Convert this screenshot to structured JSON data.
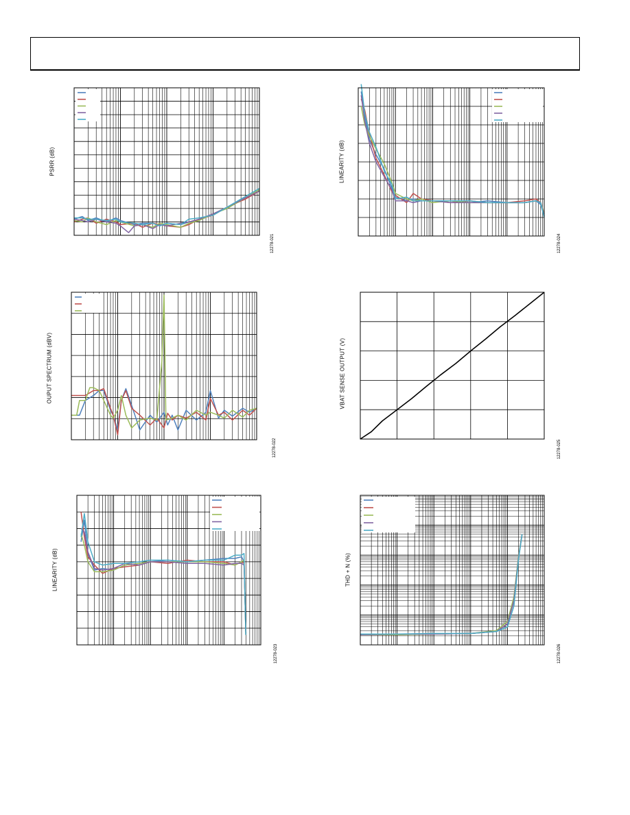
{
  "colors": {
    "blue": "#4f81bd",
    "red": "#c0504d",
    "green": "#9bbb59",
    "purple": "#8064a2",
    "cyan": "#4bacc6",
    "black": "#000000"
  },
  "chart_data": [
    {
      "id": "psrr",
      "type": "line",
      "xscale": "log",
      "ylabel": "PSRR (dB)",
      "figure_id": "12278-021",
      "xlim": [
        10,
        100000
      ],
      "ylim": [
        0,
        11
      ],
      "series": [
        {
          "color": "blue",
          "x": [
            10,
            15,
            20,
            30,
            50,
            80,
            100,
            200,
            300,
            500,
            700,
            1000,
            2000,
            3000,
            5000,
            10000,
            20000,
            50000,
            100000
          ],
          "y": [
            1.2,
            1.4,
            1.1,
            1.3,
            1.0,
            1.3,
            1.1,
            0.8,
            0.9,
            0.9,
            0.7,
            0.9,
            0.8,
            1.0,
            1.1,
            1.6,
            2.0,
            2.8,
            3.4
          ]
        },
        {
          "color": "red",
          "x": [
            10,
            15,
            20,
            30,
            50,
            80,
            100,
            200,
            300,
            500,
            700,
            1000,
            2000,
            3000,
            5000,
            10000,
            20000,
            50000,
            100000
          ],
          "y": [
            1.0,
            1.2,
            1.3,
            0.9,
            1.2,
            1.0,
            0.8,
            0.9,
            0.6,
            0.9,
            0.8,
            0.7,
            0.6,
            0.8,
            1.2,
            1.5,
            2.1,
            2.7,
            3.3
          ]
        },
        {
          "color": "green",
          "x": [
            10,
            15,
            20,
            30,
            50,
            80,
            100,
            200,
            300,
            500,
            700,
            1000,
            2000,
            3000,
            5000,
            10000,
            20000,
            50000,
            100000
          ],
          "y": [
            1.1,
            1.0,
            1.3,
            1.0,
            0.8,
            1.1,
            1.0,
            0.7,
            0.8,
            0.6,
            0.9,
            0.8,
            0.6,
            0.9,
            1.1,
            1.6,
            2.0,
            2.8,
            3.4
          ]
        },
        {
          "color": "purple",
          "x": [
            10,
            15,
            20,
            30,
            50,
            80,
            100,
            150,
            200,
            300,
            500,
            700,
            1000,
            2000,
            3000,
            5000,
            10000,
            20000,
            50000,
            100000
          ],
          "y": [
            1.2,
            1.1,
            1.0,
            1.2,
            1.0,
            0.9,
            0.7,
            0.2,
            0.7,
            0.8,
            0.5,
            0.8,
            0.7,
            0.9,
            1.0,
            1.2,
            1.6,
            2.1,
            2.8,
            3.3
          ]
        },
        {
          "color": "cyan",
          "x": [
            10,
            15,
            20,
            30,
            50,
            80,
            100,
            200,
            300,
            500,
            700,
            1000,
            2000,
            3000,
            5000,
            10000,
            20000,
            50000,
            100000
          ],
          "y": [
            1.3,
            1.3,
            1.2,
            1.2,
            1.1,
            1.2,
            1.0,
            0.9,
            0.8,
            0.9,
            0.7,
            0.9,
            0.8,
            1.2,
            1.3,
            1.5,
            2.1,
            2.9,
            3.5
          ]
        }
      ],
      "legend_rows": 5
    },
    {
      "id": "lin-right",
      "type": "line",
      "xscale": "log",
      "ylabel": "LINEARITY (dB)",
      "figure_id": "12278-024",
      "xlim": [
        0.0001,
        10
      ],
      "ylim": [
        0,
        8
      ],
      "series": [
        {
          "color": "blue",
          "x": [
            0.00012,
            0.00015,
            0.0002,
            0.0003,
            0.0005,
            0.0008,
            0.001,
            0.002,
            0.003,
            0.005,
            0.01,
            0.03,
            0.1,
            0.3,
            1,
            3,
            6,
            8,
            10
          ],
          "y": [
            7.8,
            6.5,
            5.2,
            4.4,
            3.6,
            2.6,
            2.1,
            1.9,
            2.0,
            1.9,
            1.9,
            1.9,
            1.8,
            1.9,
            1.8,
            1.8,
            1.9,
            1.7,
            1.1
          ]
        },
        {
          "color": "red",
          "x": [
            0.00012,
            0.00015,
            0.0002,
            0.0003,
            0.0005,
            0.0008,
            0.001,
            0.002,
            0.003,
            0.005,
            0.01,
            0.03,
            0.1,
            0.3,
            1,
            3,
            6,
            8,
            10
          ],
          "y": [
            7.4,
            6.8,
            5.5,
            4.2,
            3.3,
            2.4,
            2.2,
            1.8,
            2.3,
            2.0,
            1.9,
            1.8,
            1.9,
            1.8,
            1.8,
            1.9,
            2.0,
            1.8,
            1.2
          ]
        },
        {
          "color": "green",
          "x": [
            0.00012,
            0.00015,
            0.0002,
            0.0003,
            0.0005,
            0.0008,
            0.001,
            0.002,
            0.003,
            0.005,
            0.01,
            0.03,
            0.1,
            0.3,
            1,
            3,
            6,
            8,
            10
          ],
          "y": [
            7.0,
            6.0,
            5.4,
            4.7,
            3.9,
            2.9,
            2.3,
            2.0,
            1.9,
            2.0,
            1.8,
            1.9,
            1.8,
            1.8,
            1.8,
            1.8,
            1.9,
            1.8,
            1.2
          ]
        },
        {
          "color": "purple",
          "x": [
            0.00012,
            0.00015,
            0.0002,
            0.0003,
            0.0005,
            0.0008,
            0.001,
            0.002,
            0.003,
            0.005,
            0.01,
            0.03,
            0.1,
            0.3,
            1,
            3,
            6,
            8,
            10
          ],
          "y": [
            7.6,
            6.2,
            5.0,
            4.0,
            3.2,
            2.5,
            1.9,
            1.9,
            1.8,
            1.9,
            1.9,
            1.8,
            1.8,
            1.8,
            1.8,
            1.8,
            1.9,
            1.8,
            1.1
          ]
        },
        {
          "color": "cyan",
          "x": [
            0.00012,
            0.00015,
            0.0002,
            0.0003,
            0.0005,
            0.0008,
            0.001,
            0.002,
            0.003,
            0.005,
            0.01,
            0.03,
            0.1,
            0.3,
            1,
            3,
            6,
            8,
            10
          ],
          "y": [
            8.2,
            6.6,
            5.6,
            4.8,
            3.5,
            2.8,
            2.0,
            2.1,
            1.9,
            1.9,
            1.9,
            1.9,
            1.9,
            1.8,
            1.8,
            1.8,
            1.9,
            1.8,
            1.0
          ]
        }
      ],
      "legend_rows": 5
    },
    {
      "id": "spectrum",
      "type": "line",
      "xscale": "log",
      "ylabel": "OUPUT SPECTRUM (dBV)",
      "figure_id": "12278-022",
      "xlim": [
        10,
        100000
      ],
      "ylim": [
        -150,
        0
      ],
      "series": [
        {
          "color": "blue",
          "x": [
            10,
            15,
            20,
            30,
            40,
            50,
            70,
            80,
            100,
            120,
            150,
            200,
            300,
            500,
            700,
            1000,
            1200,
            1500,
            2000,
            3000,
            5000,
            8000,
            10000,
            15000,
            20000,
            30000,
            50000,
            70000,
            100000
          ],
          "y": [
            -125,
            -125,
            -110,
            -105,
            -100,
            -100,
            -120,
            -125,
            -140,
            -110,
            -98,
            -115,
            -140,
            -125,
            -132,
            -122,
            -135,
            -125,
            -140,
            -120,
            -130,
            -122,
            -100,
            -128,
            -120,
            -126,
            -118,
            -122,
            -118
          ]
        },
        {
          "color": "red",
          "x": [
            10,
            15,
            20,
            30,
            40,
            50,
            70,
            80,
            100,
            120,
            150,
            200,
            300,
            500,
            700,
            1000,
            1200,
            1500,
            2000,
            3000,
            5000,
            8000,
            10000,
            15000,
            20000,
            30000,
            50000,
            70000,
            100000
          ],
          "y": [
            -105,
            -105,
            -105,
            -100,
            -100,
            -98,
            -118,
            -125,
            -145,
            -110,
            -100,
            -118,
            -125,
            -135,
            -128,
            -138,
            -123,
            -130,
            -125,
            -128,
            -122,
            -130,
            -108,
            -125,
            -122,
            -130,
            -120,
            -125,
            -118
          ]
        },
        {
          "color": "green",
          "x": [
            10,
            13,
            15,
            20,
            25,
            30,
            40,
            50,
            70,
            80,
            100,
            120,
            150,
            200,
            300,
            500,
            700,
            900,
            1000,
            1100,
            1500,
            2000,
            3000,
            5000,
            8000,
            10000,
            15000,
            20000,
            30000,
            50000,
            70000,
            100000
          ],
          "y": [
            -125,
            -125,
            -110,
            -110,
            -97,
            -97,
            -100,
            -110,
            -125,
            -128,
            -120,
            -105,
            -125,
            -138,
            -130,
            -128,
            -130,
            -70,
            -3,
            -130,
            -128,
            -125,
            -130,
            -120,
            -125,
            -122,
            -125,
            -128,
            -120,
            -127,
            -120,
            -118
          ]
        }
      ],
      "legend_rows": 3
    },
    {
      "id": "vbat",
      "type": "line",
      "xscale": "linear",
      "ylabel": "VBAT SENSE OUTPUT (V)",
      "figure_id": "12278-025",
      "xlim": [
        0,
        5
      ],
      "ylim": [
        0,
        5
      ],
      "series": [
        {
          "color": "black",
          "x": [
            0,
            0.3,
            0.6,
            1.0,
            1.4,
            1.8,
            2.2,
            2.6,
            3.0,
            3.4,
            3.8,
            4.2,
            4.6,
            5.0
          ],
          "y": [
            0,
            0.25,
            0.62,
            1.0,
            1.38,
            1.8,
            2.2,
            2.58,
            3.0,
            3.4,
            3.82,
            4.2,
            4.6,
            5.0
          ]
        }
      ],
      "legend_rows": 0
    },
    {
      "id": "lin-left",
      "type": "line",
      "xscale": "log",
      "ylabel": "LINEARITY (dB)",
      "figure_id": "12278-023",
      "xlim": [
        0.0001,
        10
      ],
      "ylim": [
        0,
        9
      ],
      "series": [
        {
          "color": "blue",
          "x": [
            0.00013,
            0.00016,
            0.0002,
            0.0003,
            0.0005,
            0.001,
            0.002,
            0.005,
            0.01,
            0.03,
            0.1,
            0.3,
            1,
            2,
            3,
            3.5,
            3.7,
            3.9
          ],
          "y": [
            6.2,
            7.5,
            5.5,
            4.5,
            4.6,
            4.5,
            4.8,
            4.9,
            5.0,
            5.1,
            5.0,
            5.1,
            5.2,
            5.2,
            5.3,
            5.0,
            3.0,
            0.8
          ]
        },
        {
          "color": "red",
          "x": [
            0.00013,
            0.00016,
            0.0002,
            0.0003,
            0.0005,
            0.001,
            0.002,
            0.005,
            0.01,
            0.03,
            0.1,
            0.3,
            1,
            2,
            3,
            3.5,
            3.7,
            3.9
          ],
          "y": [
            8.0,
            6.5,
            5.3,
            4.8,
            4.3,
            4.6,
            4.7,
            4.8,
            5.0,
            4.9,
            5.1,
            5.0,
            5.0,
            4.8,
            5.0,
            4.9,
            3.0,
            0.8
          ]
        },
        {
          "color": "green",
          "x": [
            0.00013,
            0.00016,
            0.0002,
            0.0003,
            0.0005,
            0.001,
            0.002,
            0.005,
            0.01,
            0.03,
            0.1,
            0.3,
            1,
            2,
            3,
            3.5,
            3.7,
            3.9
          ],
          "y": [
            6.7,
            6.0,
            5.0,
            4.4,
            4.4,
            4.5,
            4.8,
            4.9,
            5.0,
            5.0,
            5.0,
            5.0,
            4.9,
            4.8,
            5.0,
            5.1,
            3.0,
            0.8
          ]
        },
        {
          "color": "purple",
          "x": [
            0.00013,
            0.00016,
            0.0002,
            0.0003,
            0.0005,
            0.001,
            0.002,
            0.005,
            0.01,
            0.03,
            0.1,
            0.3,
            1,
            2,
            3,
            3.5,
            3.7,
            3.9
          ],
          "y": [
            7.0,
            6.8,
            5.6,
            4.6,
            4.5,
            4.6,
            4.9,
            4.8,
            5.0,
            5.0,
            4.9,
            4.9,
            4.8,
            4.9,
            4.9,
            4.8,
            3.0,
            0.8
          ]
        },
        {
          "color": "cyan",
          "x": [
            0.00013,
            0.00016,
            0.0002,
            0.0003,
            0.0005,
            0.001,
            0.002,
            0.005,
            0.01,
            0.03,
            0.1,
            0.3,
            1,
            2,
            3,
            3.5,
            3.7,
            3.9
          ],
          "y": [
            6.5,
            7.9,
            6.2,
            5.0,
            4.8,
            4.9,
            4.9,
            5.0,
            5.1,
            5.1,
            5.0,
            5.1,
            5.1,
            5.4,
            5.4,
            5.5,
            3.0,
            0.6
          ]
        }
      ],
      "legend_rows": 5
    },
    {
      "id": "thd",
      "type": "line",
      "xscale": "log",
      "yscale": "log",
      "ylabel": "THD + N (%)",
      "figure_id": "12278-026",
      "xlim": [
        0.0001,
        10
      ],
      "ylim": [
        0.001,
        100
      ],
      "series": [
        {
          "color": "blue",
          "x": [
            0.0001,
            0.001,
            0.01,
            0.1,
            0.5,
            1.0,
            1.5,
            2.0,
            2.5
          ],
          "y": [
            0.0022,
            0.0023,
            0.0023,
            0.0024,
            0.0028,
            0.004,
            0.02,
            0.8,
            5
          ]
        },
        {
          "color": "red",
          "x": [
            0.0001,
            0.001,
            0.01,
            0.1,
            0.5,
            1.0,
            1.5,
            2.0,
            2.5
          ],
          "y": [
            0.0022,
            0.0022,
            0.0023,
            0.0024,
            0.0028,
            0.005,
            0.03,
            0.8,
            5
          ]
        },
        {
          "color": "green",
          "x": [
            0.0001,
            0.001,
            0.01,
            0.1,
            0.5,
            1.0,
            1.5,
            2.0,
            2.5
          ],
          "y": [
            0.0022,
            0.0022,
            0.0023,
            0.0024,
            0.003,
            0.006,
            0.04,
            0.9,
            5
          ]
        },
        {
          "color": "purple",
          "x": [
            0.0001,
            0.001,
            0.01,
            0.1,
            0.5,
            1.0,
            1.5,
            2.0,
            2.5
          ],
          "y": [
            0.0022,
            0.0023,
            0.0023,
            0.0024,
            0.0028,
            0.005,
            0.03,
            0.8,
            5
          ]
        },
        {
          "color": "cyan",
          "x": [
            0.0001,
            0.001,
            0.01,
            0.1,
            0.5,
            1.0,
            1.5,
            2.0,
            2.5
          ],
          "y": [
            0.0023,
            0.0023,
            0.0024,
            0.0024,
            0.0028,
            0.004,
            0.02,
            0.7,
            5
          ]
        }
      ],
      "legend_rows": 5
    }
  ]
}
